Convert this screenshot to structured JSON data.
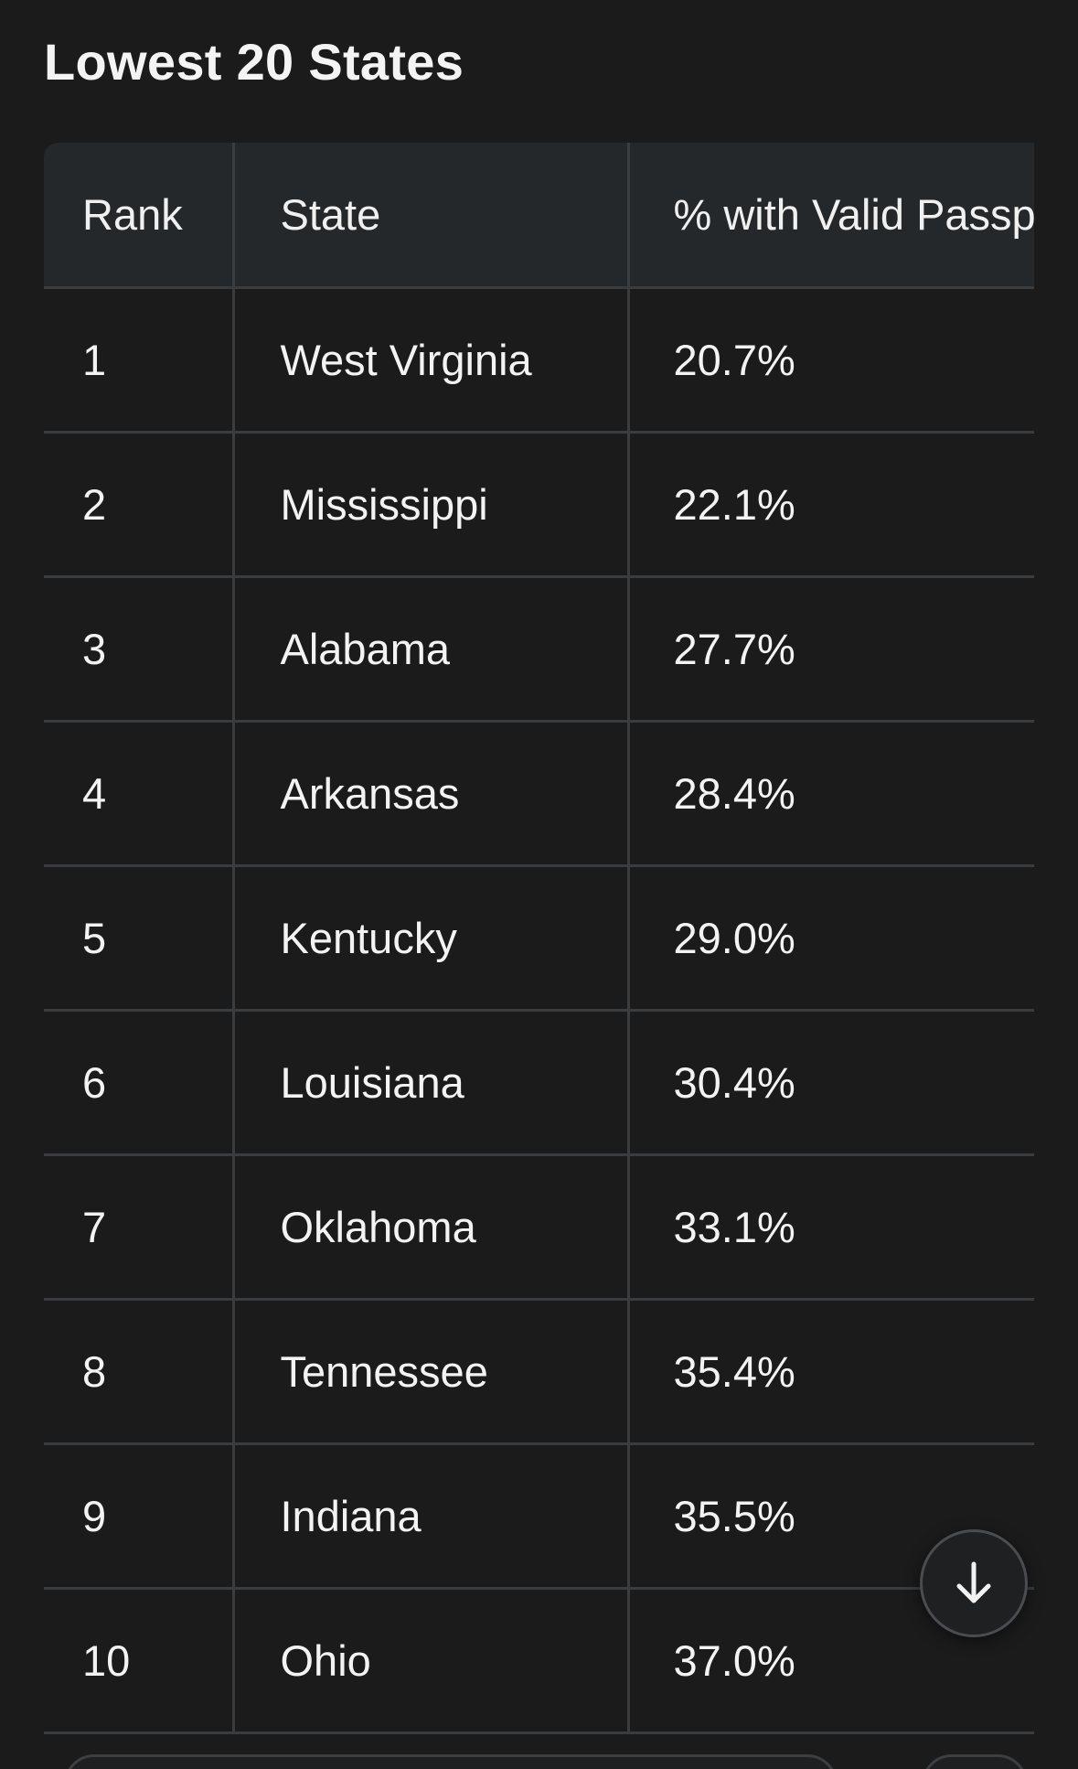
{
  "section": {
    "title": "Lowest 20 States"
  },
  "table": {
    "headers": [
      "Rank",
      "State",
      "% with Valid Passp"
    ],
    "rows": [
      [
        "1",
        "West Virginia",
        "20.7%"
      ],
      [
        "2",
        "Mississippi",
        "22.1%"
      ],
      [
        "3",
        "Alabama",
        "27.7%"
      ],
      [
        "4",
        "Arkansas",
        "28.4%"
      ],
      [
        "5",
        "Kentucky",
        "29.0%"
      ],
      [
        "6",
        "Louisiana",
        "30.4%"
      ],
      [
        "7",
        "Oklahoma",
        "33.1%"
      ],
      [
        "8",
        "Tennessee",
        "35.4%"
      ],
      [
        "9",
        "Indiana",
        "35.5%"
      ],
      [
        "10",
        "Ohio",
        "37.0%"
      ]
    ]
  },
  "controls": {
    "scroll_down_icon": "arrow-down-icon"
  }
}
